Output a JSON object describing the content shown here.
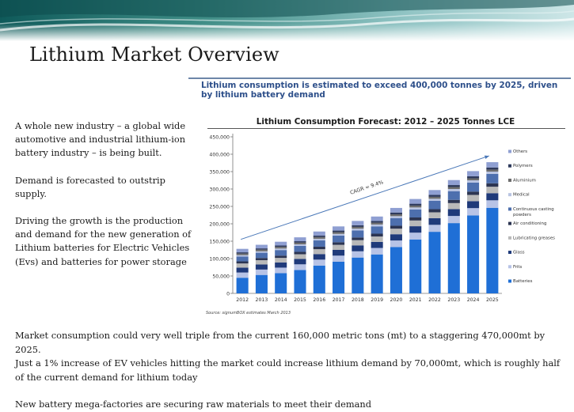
{
  "slide": {
    "title": "Lithium Market Overview",
    "headline": "Lithium consumption is estimated to exceed 400,000 tonnes by 2025, driven by lithium battery demand",
    "left_paragraphs": [
      "A whole new industry – a global wide automotive and industrial lithium-ion battery industry – is being built.",
      "Demand is forecasted to outstrip supply.",
      "Driving the growth is the production and demand for the new generation of Lithium  batteries for Electric Vehicles (Evs)  and batteries for power storage"
    ],
    "bottom_paragraphs": [
      "Market consumption could very well triple from the current 160,000 metric tons (mt) to a staggering 470,000mt by 2025.",
      "Just a 1% increase of EV vehicles hitting the market could increase lithium demand by 70,000mt, which is roughly half of the current demand for lithium today",
      "New battery mega-factories are securing raw materials to meet their demand"
    ]
  },
  "colors": {
    "headline": "#2d4f8a",
    "Batteries": "#1f6fd6",
    "Frits": "#b7c3e6",
    "Glass": "#1f3a7a",
    "Lubricating greases": "#b9b9b9",
    "Air conditioning": "#2c3552",
    "Continuous casting powders": "#4d6fae",
    "Medical": "#b9c4e2",
    "Aluminium": "#6d6d6d",
    "Polymers": "#2e3a5c",
    "Others": "#8f9fd2"
  },
  "chart_data": {
    "type": "bar",
    "stacked": true,
    "title": "Lithium Consumption Forecast:  2012 – 2025 Tonnes LCE",
    "source": "Source:  signumBOX estimates March 2013",
    "annotation": "CAGR = 9.4%",
    "categories": [
      "2012",
      "2013",
      "2014",
      "2015",
      "2016",
      "2017",
      "2018",
      "2019",
      "2020",
      "2021",
      "2022",
      "2023",
      "2024",
      "2025"
    ],
    "ylim": [
      0,
      450000
    ],
    "yticks": [
      "0",
      "50,000",
      "100,000",
      "150,000",
      "200,000",
      "250,000",
      "300,000",
      "350,000",
      "400,000",
      "450,000"
    ],
    "grid": false,
    "legend_position": "right",
    "series": [
      {
        "name": "Batteries",
        "values": [
          45000,
          53000,
          58000,
          67000,
          80000,
          91000,
          103000,
          112000,
          133000,
          155000,
          177000,
          202000,
          224000,
          246000
        ]
      },
      {
        "name": "Frits",
        "values": [
          15000,
          15500,
          16000,
          16500,
          17000,
          17500,
          18000,
          18500,
          19000,
          19500,
          20000,
          20500,
          21000,
          21500
        ]
      },
      {
        "name": "Glass",
        "values": [
          14000,
          14500,
          15000,
          15500,
          16000,
          16500,
          17000,
          17500,
          18000,
          18500,
          19000,
          19500,
          20000,
          20500
        ]
      },
      {
        "name": "Lubricating greases",
        "values": [
          12000,
          12500,
          13000,
          13500,
          14000,
          14500,
          15000,
          15500,
          16000,
          16500,
          17000,
          17500,
          18000,
          18500
        ]
      },
      {
        "name": "Air conditioning",
        "values": [
          6000,
          6300,
          6600,
          6900,
          7200,
          7500,
          7800,
          8100,
          8400,
          8700,
          9000,
          9300,
          9600,
          9900
        ]
      },
      {
        "name": "Continuous casting powders",
        "values": [
          14000,
          15000,
          16000,
          17000,
          18000,
          19000,
          20000,
          21000,
          22000,
          23000,
          24000,
          25000,
          26000,
          27000
        ]
      },
      {
        "name": "Medical",
        "values": [
          4000,
          4200,
          4400,
          4600,
          4800,
          5000,
          5200,
          5400,
          5600,
          5800,
          6000,
          6200,
          6400,
          6600
        ]
      },
      {
        "name": "Aluminium",
        "values": [
          4500,
          4600,
          4700,
          4800,
          4900,
          5000,
          5100,
          5200,
          5300,
          5400,
          5500,
          5600,
          5700,
          5800
        ]
      },
      {
        "name": "Polymers",
        "values": [
          3500,
          3700,
          3900,
          4100,
          4300,
          4500,
          4700,
          4900,
          5100,
          5300,
          5500,
          5700,
          5900,
          6100
        ]
      },
      {
        "name": "Others",
        "values": [
          10000,
          10400,
          10800,
          11200,
          11600,
          12000,
          12400,
          12800,
          13200,
          13600,
          14000,
          14400,
          14800,
          15200
        ]
      }
    ]
  }
}
